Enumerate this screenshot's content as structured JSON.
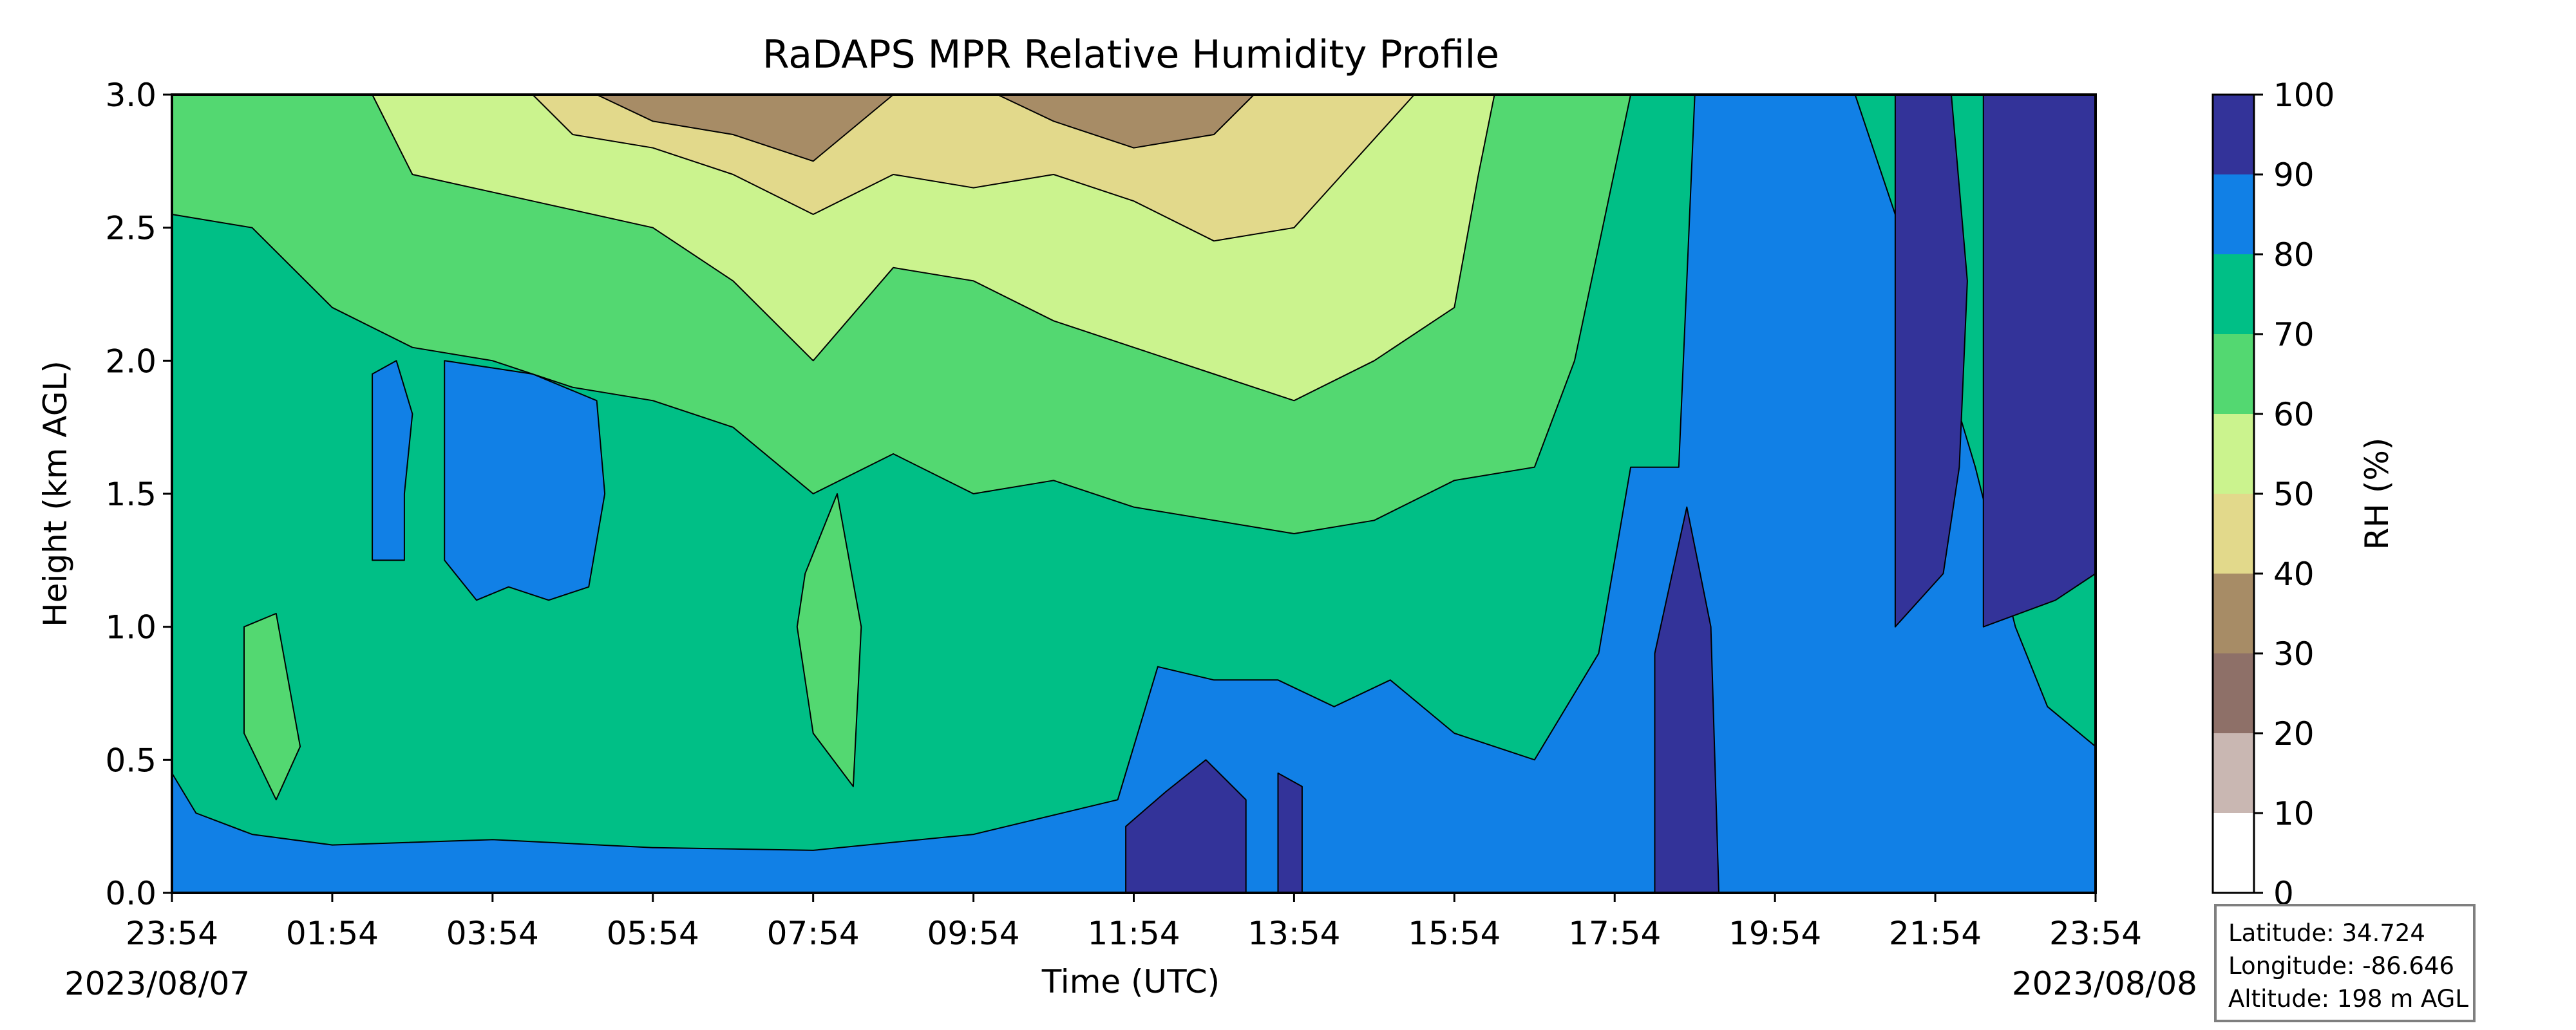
{
  "chart_data": {
    "type": "heatmap",
    "subtype": "filled-contour",
    "title": "RaDAPS MPR Relative Humidity Profile",
    "xlabel": "Time (UTC)",
    "ylabel": "Height (km AGL)",
    "x_ticks": [
      "23:54",
      "01:54",
      "03:54",
      "05:54",
      "07:54",
      "09:54",
      "11:54",
      "13:54",
      "15:54",
      "17:54",
      "19:54",
      "21:54",
      "23:54"
    ],
    "x_date_start": "2023/08/07",
    "x_date_end": "2023/08/08",
    "xlim_hours": [
      0,
      24
    ],
    "ylim": [
      0,
      3.0
    ],
    "y_ticks": [
      "0.0",
      "0.5",
      "1.0",
      "1.5",
      "2.0",
      "2.5",
      "3.0"
    ],
    "colorbar": {
      "label": "RH (%)",
      "levels": [
        0,
        10,
        20,
        30,
        40,
        50,
        60,
        70,
        80,
        90,
        100
      ],
      "tick_labels": [
        "0",
        "10",
        "20",
        "30",
        "40",
        "50",
        "60",
        "70",
        "80",
        "90",
        "100"
      ],
      "colors": [
        "#ffffff",
        "#c9b7b2",
        "#8e7068",
        "#a78c66",
        "#e2d98b",
        "#cbf38e",
        "#53d871",
        "#00bf86",
        "#1180e6",
        "#333399"
      ]
    },
    "grid": false,
    "contours": [
      {
        "level": 80,
        "color": "#1180e6",
        "polygons": [
          [
            [
              0,
              0
            ],
            [
              0,
              0.45
            ],
            [
              0.3,
              0.3
            ],
            [
              1,
              0.22
            ],
            [
              2,
              0.18
            ],
            [
              4,
              0.2
            ],
            [
              6,
              0.17
            ],
            [
              8,
              0.16
            ],
            [
              10,
              0.22
            ],
            [
              11.8,
              0.35
            ],
            [
              12.3,
              0.85
            ],
            [
              13,
              0.8
            ],
            [
              13.8,
              0.8
            ],
            [
              14.5,
              0.7
            ],
            [
              15.2,
              0.8
            ],
            [
              16,
              0.6
            ],
            [
              17,
              0.5
            ],
            [
              17.8,
              0.9
            ],
            [
              18.2,
              1.6
            ],
            [
              18.8,
              1.6
            ],
            [
              19,
              3.0
            ],
            [
              20,
              3.0
            ],
            [
              20.5,
              3.0
            ],
            [
              21,
              3.0
            ],
            [
              22,
              2.1
            ],
            [
              22.5,
              1.6
            ],
            [
              23,
              1.0
            ],
            [
              23.4,
              0.7
            ],
            [
              24,
              0.55
            ],
            [
              24,
              0
            ]
          ],
          [
            [
              2.5,
              1.25
            ],
            [
              2.5,
              1.95
            ],
            [
              2.8,
              2.0
            ],
            [
              3.0,
              1.8
            ],
            [
              2.9,
              1.5
            ],
            [
              2.9,
              1.25
            ]
          ],
          [
            [
              3.4,
              1.25
            ],
            [
              3.4,
              2.0
            ],
            [
              4.5,
              1.95
            ],
            [
              5.3,
              1.85
            ],
            [
              5.4,
              1.5
            ],
            [
              5.2,
              1.15
            ],
            [
              4.7,
              1.1
            ],
            [
              4.2,
              1.15
            ],
            [
              3.8,
              1.1
            ]
          ]
        ]
      },
      {
        "level": 90,
        "color": "#333399",
        "polygons": [
          [
            [
              11.9,
              0
            ],
            [
              11.9,
              0.25
            ],
            [
              12.4,
              0.38
            ],
            [
              12.9,
              0.5
            ],
            [
              13.4,
              0.35
            ],
            [
              13.4,
              0
            ]
          ],
          [
            [
              13.8,
              0
            ],
            [
              13.8,
              0.45
            ],
            [
              14.1,
              0.4
            ],
            [
              14.1,
              0
            ]
          ],
          [
            [
              18.5,
              0
            ],
            [
              18.5,
              0.9
            ],
            [
              18.9,
              1.45
            ],
            [
              19.2,
              1.0
            ],
            [
              19.3,
              0
            ]
          ],
          [
            [
              21.5,
              1.0
            ],
            [
              21.5,
              3.0
            ],
            [
              22.2,
              3.0
            ],
            [
              22.4,
              2.3
            ],
            [
              22.3,
              1.6
            ],
            [
              22.1,
              1.2
            ]
          ],
          [
            [
              22.6,
              1.0
            ],
            [
              22.6,
              3.0
            ],
            [
              24,
              3.0
            ],
            [
              24,
              1.2
            ],
            [
              23.5,
              1.1
            ]
          ]
        ]
      },
      {
        "level": 60,
        "color": "#53d871",
        "polygons": [
          [
            [
              0,
              3.0
            ],
            [
              0,
              2.55
            ],
            [
              1,
              2.5
            ],
            [
              2,
              2.2
            ],
            [
              3,
              2.05
            ],
            [
              4,
              2.0
            ],
            [
              5,
              1.9
            ],
            [
              6,
              1.85
            ],
            [
              7,
              1.75
            ],
            [
              8,
              1.5
            ],
            [
              9,
              1.65
            ],
            [
              10,
              1.5
            ],
            [
              11,
              1.55
            ],
            [
              12,
              1.45
            ],
            [
              13,
              1.4
            ],
            [
              14,
              1.35
            ],
            [
              15,
              1.4
            ],
            [
              16,
              1.55
            ],
            [
              17,
              1.6
            ],
            [
              17.5,
              2.0
            ],
            [
              18.2,
              3.0
            ]
          ],
          [
            [
              7.8,
              1.0
            ],
            [
              7.9,
              1.2
            ],
            [
              8.3,
              1.5
            ],
            [
              8.6,
              1.0
            ],
            [
              8.5,
              0.4
            ],
            [
              8.0,
              0.6
            ]
          ],
          [
            [
              0.9,
              0.6
            ],
            [
              0.9,
              1.0
            ],
            [
              1.3,
              1.05
            ],
            [
              1.6,
              0.55
            ],
            [
              1.3,
              0.35
            ]
          ]
        ]
      },
      {
        "level": 50,
        "color": "#cbf38e",
        "polygons": [
          [
            [
              2.5,
              3.0
            ],
            [
              3,
              2.7
            ],
            [
              4.5,
              2.6
            ],
            [
              6,
              2.5
            ],
            [
              7,
              2.3
            ],
            [
              8,
              2.0
            ],
            [
              9,
              2.35
            ],
            [
              10,
              2.3
            ],
            [
              11,
              2.15
            ],
            [
              12,
              2.05
            ],
            [
              13,
              1.95
            ],
            [
              14,
              1.85
            ],
            [
              15,
              2.0
            ],
            [
              16,
              2.2
            ],
            [
              16.3,
              2.7
            ],
            [
              16.5,
              3.0
            ]
          ]
        ]
      },
      {
        "level": 40,
        "color": "#e2d98b",
        "polygons": [
          [
            [
              4.5,
              3.0
            ],
            [
              5,
              2.85
            ],
            [
              6,
              2.8
            ],
            [
              7,
              2.7
            ],
            [
              8,
              2.55
            ],
            [
              9,
              2.7
            ],
            [
              10,
              2.65
            ],
            [
              11,
              2.7
            ],
            [
              12,
              2.6
            ],
            [
              13,
              2.45
            ],
            [
              14,
              2.5
            ],
            [
              14.6,
              2.7
            ],
            [
              15.5,
              3.0
            ]
          ]
        ]
      },
      {
        "level": 30,
        "color": "#a78c66",
        "polygons": [
          [
            [
              5.3,
              3.0
            ],
            [
              6,
              2.9
            ],
            [
              7,
              2.85
            ],
            [
              8,
              2.75
            ],
            [
              9,
              3.0
            ]
          ],
          [
            [
              10.3,
              3.0
            ],
            [
              11,
              2.9
            ],
            [
              12,
              2.8
            ],
            [
              13,
              2.85
            ],
            [
              13.5,
              3.0
            ]
          ]
        ]
      }
    ]
  },
  "info_box": {
    "latitude": "Latitude: 34.724",
    "longitude": "Longitude: -86.646",
    "altitude": "Altitude: 198 m AGL"
  }
}
